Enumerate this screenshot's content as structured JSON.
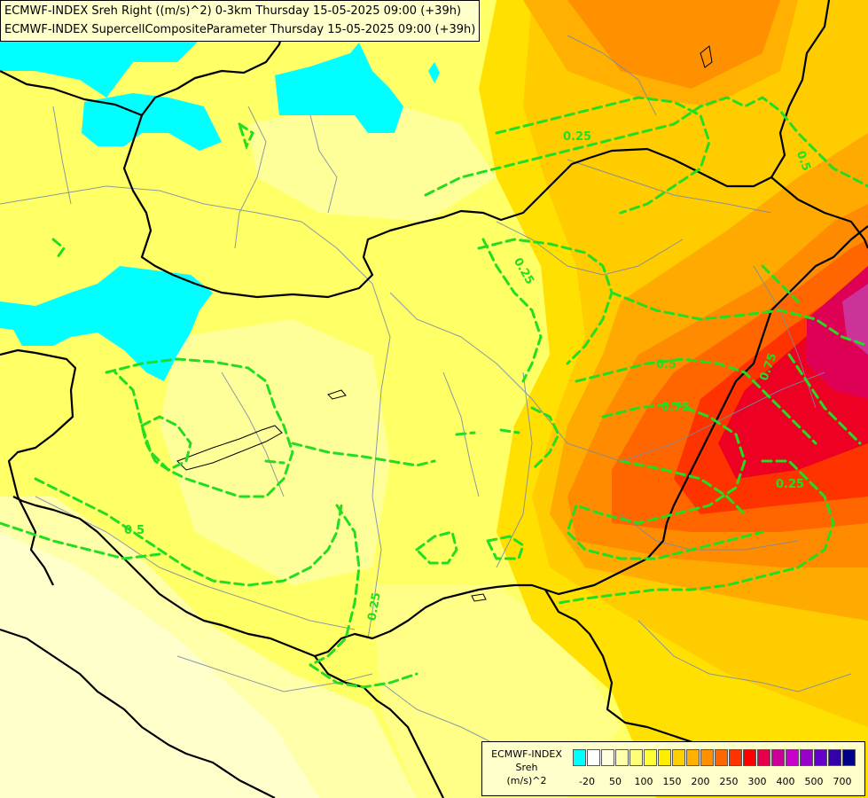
{
  "title_lines": [
    "ECMWF-INDEX Sreh Right ((m/s)^2) 0-3km Thursday 15-05-2025 09:00 (+39h)",
    "ECMWF-INDEX SupercellCompositeParameter Thursday 15-05-2025 09:00 (+39h)"
  ],
  "legend": {
    "line1": "ECMWF-INDEX",
    "line2": "Sreh",
    "line3": "(m/s)^2",
    "colors": [
      "#00ffff",
      "#ffffff",
      "#ffffdd",
      "#ffffaa",
      "#ffff77",
      "#ffff33",
      "#ffee00",
      "#ffd000",
      "#ffb000",
      "#ff9000",
      "#ff6600",
      "#ff3300",
      "#ff0000",
      "#e6004c",
      "#cc0099",
      "#cc00cc",
      "#9900cc",
      "#6600cc",
      "#3300aa",
      "#000088"
    ],
    "ticks": [
      "-20",
      "50",
      "100",
      "150",
      "200",
      "250",
      "300",
      "400",
      "500",
      "700"
    ]
  },
  "contour_labels": [
    "0.25",
    "0.5",
    "0.25",
    "0.5",
    "0.5",
    "0.75",
    "0.75",
    "0.25",
    "0.25"
  ],
  "colors": {
    "cyan": "#00ffff",
    "contour": "#22dd22",
    "border": "#000000",
    "river": "#7788aa"
  }
}
